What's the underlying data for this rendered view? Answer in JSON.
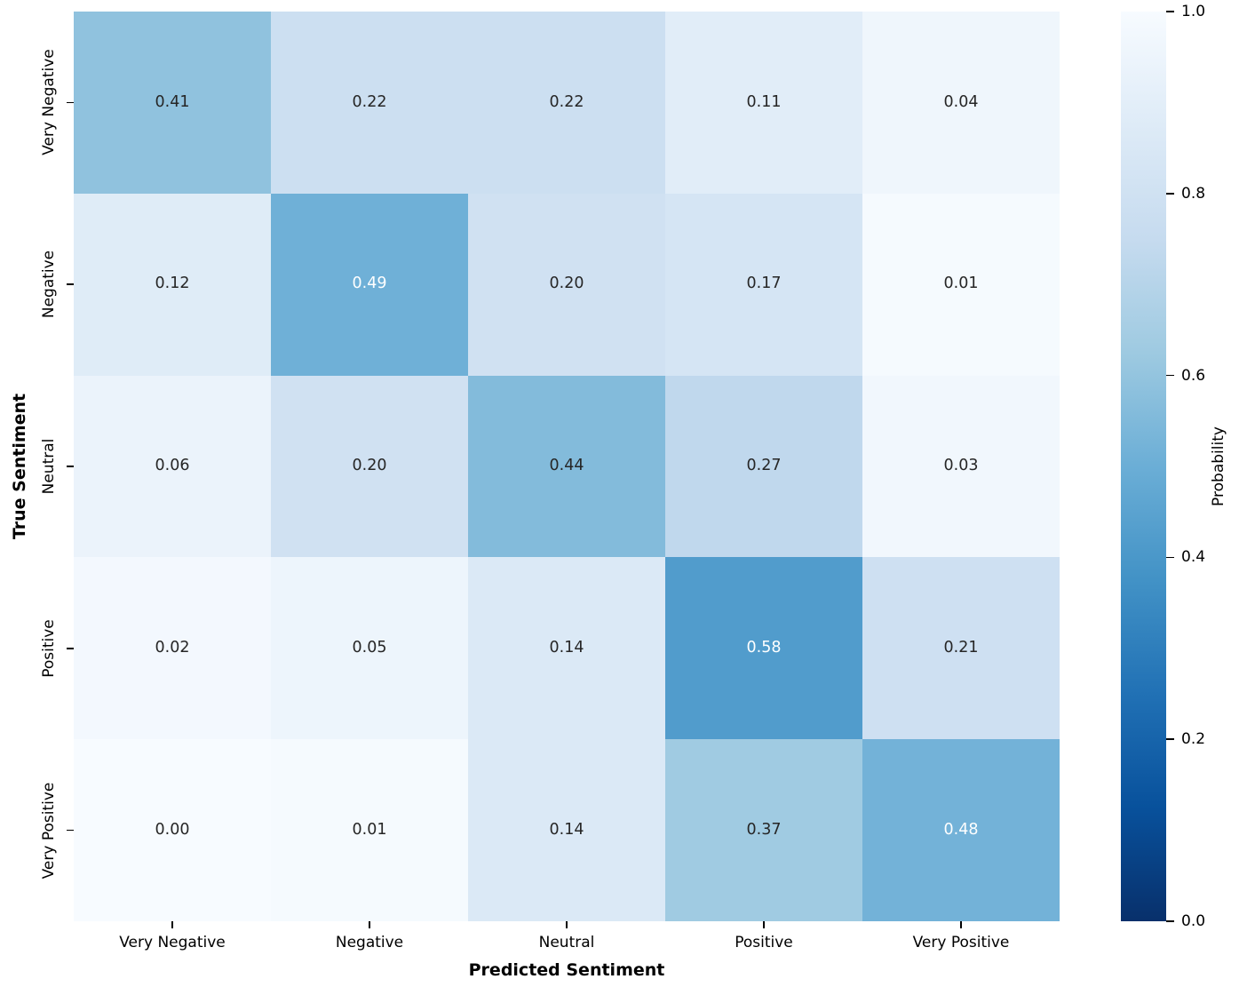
{
  "chart_data": {
    "type": "heatmap",
    "title": "",
    "xlabel": "Predicted Sentiment",
    "ylabel": "True Sentiment",
    "x_categories": [
      "Very Negative",
      "Negative",
      "Neutral",
      "Positive",
      "Very Positive"
    ],
    "y_categories": [
      "Very Negative",
      "Negative",
      "Neutral",
      "Positive",
      "Very Positive"
    ],
    "matrix": [
      [
        0.41,
        0.22,
        0.22,
        0.11,
        0.04
      ],
      [
        0.12,
        0.49,
        0.2,
        0.17,
        0.01
      ],
      [
        0.06,
        0.2,
        0.44,
        0.27,
        0.03
      ],
      [
        0.02,
        0.05,
        0.14,
        0.58,
        0.21
      ],
      [
        0.0,
        0.01,
        0.14,
        0.37,
        0.48
      ]
    ],
    "value_decimals": 2,
    "colormap": "Blues",
    "vmin": 0.0,
    "vmax": 1.0,
    "grid": false,
    "colorbar": {
      "label": "Probability",
      "position": "right",
      "tick_values": [
        0.0,
        0.2,
        0.4,
        0.6,
        0.8,
        1.0
      ],
      "tick_labels": [
        "0.0",
        "0.2",
        "0.4",
        "0.6",
        "0.8",
        "1.0"
      ]
    }
  },
  "colors": {
    "cmap_stops": [
      "#f7fbff",
      "#deebf7",
      "#c6dbef",
      "#9ecae1",
      "#6baed6",
      "#4292c6",
      "#2171b5",
      "#08519c",
      "#08306b"
    ],
    "annotation_dark": "#262626",
    "annotation_light": "#ffffff",
    "axis_text": "#000000",
    "background": "#ffffff"
  }
}
